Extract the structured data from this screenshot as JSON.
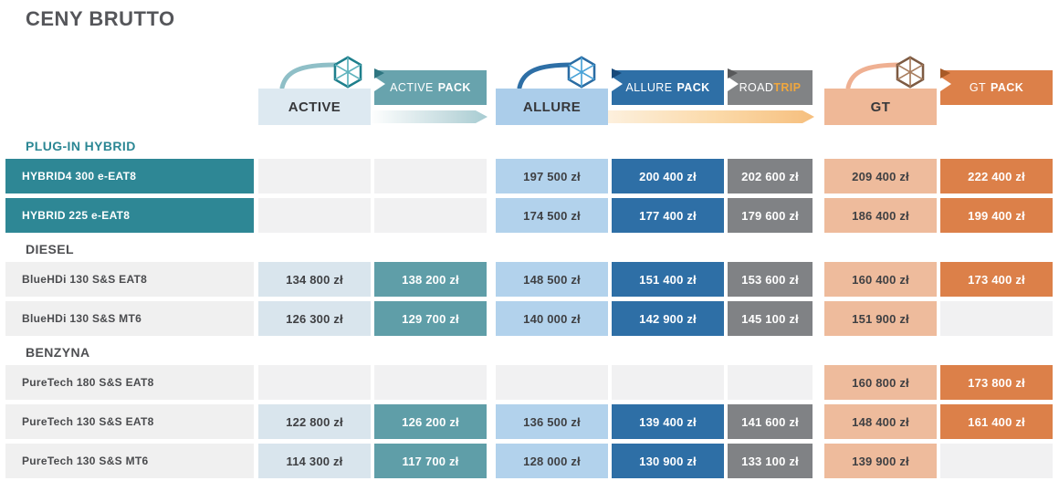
{
  "title": "CENY BRUTTO",
  "columns": [
    {
      "id": "active",
      "label": "ACTIVE"
    },
    {
      "id": "active-pack",
      "label": "ACTIVE",
      "label_bold": "PACK"
    },
    {
      "id": "allure",
      "label": "ALLURE"
    },
    {
      "id": "allure-pack",
      "label": "ALLURE",
      "label_bold": "PACK"
    },
    {
      "id": "roadtrip",
      "label": "ROAD",
      "label_accent": "TRIP"
    },
    {
      "id": "gt",
      "label": "GT"
    },
    {
      "id": "gt-pack",
      "label": "GT",
      "label_bold": "PACK"
    }
  ],
  "sections": [
    {
      "name": "PLUG-IN HYBRID",
      "style": "hybrid",
      "rows": [
        {
          "engine": "HYBRID4 300 e-EAT8",
          "prices": [
            "",
            "",
            "197 500 zł",
            "200 400 zł",
            "202 600 zł",
            "209 400 zł",
            "222 400 zł"
          ]
        },
        {
          "engine": "HYBRID 225 e-EAT8",
          "prices": [
            "",
            "",
            "174 500 zł",
            "177 400 zł",
            "179 600 zł",
            "186 400 zł",
            "199 400 zł"
          ]
        }
      ]
    },
    {
      "name": "DIESEL",
      "style": "standard",
      "rows": [
        {
          "engine": "BlueHDi 130 S&S EAT8",
          "prices": [
            "134 800 zł",
            "138 200 zł",
            "148 500 zł",
            "151 400 zł",
            "153 600 zł",
            "160 400 zł",
            "173 400 zł"
          ]
        },
        {
          "engine": "BlueHDi 130 S&S MT6",
          "prices": [
            "126 300 zł",
            "129 700 zł",
            "140 000 zł",
            "142 900 zł",
            "145 100 zł",
            "151 900 zł",
            ""
          ]
        }
      ]
    },
    {
      "name": "BENZYNA",
      "style": "standard",
      "rows": [
        {
          "engine": "PureTech 180 S&S EAT8",
          "prices": [
            "",
            "",
            "",
            "",
            "",
            "160 800 zł",
            "173 800 zł"
          ]
        },
        {
          "engine": "PureTech 130 S&S EAT8",
          "prices": [
            "122 800 zł",
            "126 200 zł",
            "136 500 zł",
            "139 400 zł",
            "141 600 zł",
            "148 400 zł",
            "161 400 zł"
          ]
        },
        {
          "engine": "PureTech 130 S&S MT6",
          "prices": [
            "114 300 zł",
            "117 700 zł",
            "128 000 zł",
            "130 900 zł",
            "133 100 zł",
            "139 900 zł",
            ""
          ]
        }
      ]
    }
  ],
  "icons": {
    "cube_active": "3d-cube-wireframe-icon",
    "cube_allure": "3d-cube-wireframe-icon",
    "cube_gt": "3d-cube-wireframe-icon"
  },
  "colors": {
    "teal_dark": "#2e8795",
    "teal_pack": "#5f9ea8",
    "blue_light": "#b2d2ec",
    "blue_pack": "#2e6fa6",
    "gray_roadtrip": "#808285",
    "roadtrip_accent": "#f0a73e",
    "salmon_gt": "#eebb9c",
    "orange_gt_pack": "#dc8049",
    "empty_cell": "#f1f1f2",
    "title_text": "#55565a"
  }
}
